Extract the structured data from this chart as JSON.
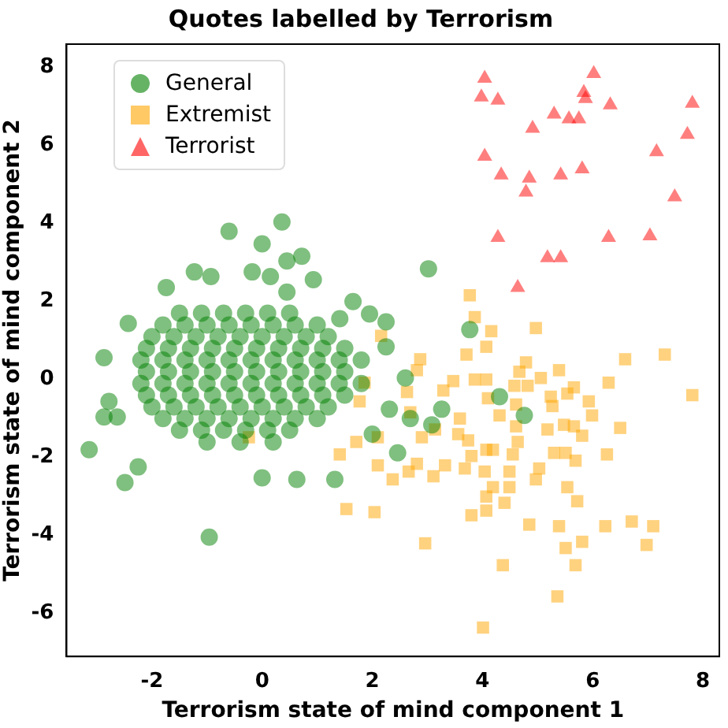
{
  "chart_data": {
    "type": "scatter",
    "title": "Quotes labelled by Terrorism",
    "xlabel": "Terrorism state of mind component 1",
    "ylabel": "Terrorism state of mind component 2",
    "xlim": [
      -3.55,
      8.3
    ],
    "ylim": [
      -7.1,
      8.6
    ],
    "xticks": [
      -2,
      0,
      2,
      4,
      6,
      8
    ],
    "yticks": [
      -6,
      -4,
      -2,
      0,
      2,
      4,
      6,
      8
    ],
    "grid": false,
    "legend": "top left",
    "series": [
      {
        "name": "General",
        "color": "#008000",
        "marker": "circle",
        "x": [
          0.36,
          -0.6,
          0,
          0.45,
          0.72,
          -1.23,
          -0.93,
          -0.18,
          0.15,
          0.93,
          -1.74,
          0.45,
          -2.43,
          -2.87,
          -3.14,
          -2.49,
          -2.25,
          -0.96,
          0.63,
          0,
          1.32,
          -2.78,
          -2.87,
          -2.63,
          1.41,
          1.65,
          2.25,
          1.95,
          2.25,
          2.6,
          2.46,
          2,
          2.31,
          3.02,
          3.77,
          4.31,
          4.76,
          3.26,
          3.08,
          2.69,
          -1.5,
          -1.1,
          -0.7,
          -0.3,
          0.1,
          0.5,
          -1.8,
          -1.4,
          -1,
          -0.6,
          -0.2,
          0.2,
          0.6,
          1,
          -2,
          -1.6,
          -1.2,
          -0.8,
          -0.4,
          0,
          0.4,
          0.8,
          1.2,
          -2.1,
          -1.7,
          -1.3,
          -0.9,
          -0.5,
          -0.1,
          0.3,
          0.7,
          1.1,
          1.5,
          -2.2,
          -1.8,
          -1.4,
          -1,
          -0.6,
          -0.2,
          0.2,
          0.6,
          1,
          1.4,
          1.8,
          -2.1,
          -1.7,
          -1.3,
          -0.9,
          -0.5,
          -0.1,
          0.3,
          0.7,
          1.1,
          1.5,
          -2.2,
          -1.8,
          -1.4,
          -1,
          -0.6,
          -0.2,
          0.2,
          0.6,
          1,
          1.4,
          1.8,
          -2.1,
          -1.7,
          -1.3,
          -0.9,
          -0.5,
          -0.1,
          0.3,
          0.7,
          1.1,
          1.5,
          -2,
          -1.6,
          -1.2,
          -0.8,
          -0.4,
          0,
          0.4,
          0.8,
          1.2,
          -1.8,
          -1.4,
          -1,
          -0.6,
          -0.2,
          0.2,
          0.6,
          1,
          -1.5,
          -1.1,
          -0.7,
          -0.3,
          0.1,
          0.5,
          -1,
          -0.4,
          0.2
        ],
        "values": [
          4.04,
          3.8,
          3.48,
          3.04,
          3.16,
          2.76,
          2.64,
          2.76,
          2.64,
          2.56,
          2.36,
          2.24,
          1.44,
          0.56,
          -1.8,
          -2.64,
          -2.24,
          -4.04,
          -2.56,
          -2.52,
          -2.56,
          -0.56,
          -0.96,
          -0.96,
          1.56,
          2,
          1.48,
          1.68,
          0.84,
          0.04,
          -1.88,
          -1.4,
          -0.76,
          2.84,
          1.28,
          -0.44,
          -0.92,
          -0.76,
          -1.16,
          -1,
          1.7,
          1.7,
          1.7,
          1.7,
          1.7,
          1.7,
          1.4,
          1.4,
          1.4,
          1.4,
          1.4,
          1.4,
          1.4,
          1.4,
          1.1,
          1.1,
          1.1,
          1.1,
          1.1,
          1.1,
          1.1,
          1.1,
          1.1,
          0.8,
          0.8,
          0.8,
          0.8,
          0.8,
          0.8,
          0.8,
          0.8,
          0.8,
          0.8,
          0.5,
          0.5,
          0.5,
          0.5,
          0.5,
          0.5,
          0.5,
          0.5,
          0.5,
          0.5,
          0.5,
          0.2,
          0.2,
          0.2,
          0.2,
          0.2,
          0.2,
          0.2,
          0.2,
          0.2,
          0.2,
          -0.1,
          -0.1,
          -0.1,
          -0.1,
          -0.1,
          -0.1,
          -0.1,
          -0.1,
          -0.1,
          -0.1,
          -0.1,
          -0.4,
          -0.4,
          -0.4,
          -0.4,
          -0.4,
          -0.4,
          -0.4,
          -0.4,
          -0.4,
          -0.4,
          -0.7,
          -0.7,
          -0.7,
          -0.7,
          -0.7,
          -0.7,
          -0.7,
          -0.7,
          -0.7,
          -1,
          -1,
          -1,
          -1,
          -1,
          -1,
          -1,
          -1,
          -1.3,
          -1.3,
          -1.3,
          -1.3,
          -1.3,
          -1.3,
          -1.6,
          -1.6,
          -1.6
        ]
      },
      {
        "name": "Extremist",
        "color": "#ffa500",
        "marker": "square",
        "x": [
          3.77,
          3.86,
          4.16,
          4.97,
          4.07,
          3.71,
          2.16,
          6.59,
          7.31,
          7.81,
          4.79,
          5.39,
          4.67,
          6.29,
          5.06,
          5.66,
          3.47,
          3.86,
          4.07,
          4.58,
          4.82,
          3.29,
          2.63,
          5.24,
          5.54,
          5.93,
          4.1,
          4.61,
          5.99,
          5.27,
          4.31,
          2.69,
          3.59,
          6.5,
          5.18,
          5.48,
          5.66,
          5.81,
          4.61,
          3.14,
          2.9,
          3.56,
          3.74,
          2.1,
          1.71,
          4.07,
          3.8,
          4.19,
          4.55,
          4.64,
          5.3,
          5.51,
          5.69,
          6.26,
          1.41,
          2.1,
          2.37,
          2.66,
          2.81,
          3.11,
          3.32,
          3.68,
          4.04,
          4.49,
          4.49,
          4.97,
          5.03,
          5.54,
          5.72,
          4.19,
          4.07,
          4.4,
          4.07,
          3.8,
          1.53,
          2.04,
          4.85,
          5.39,
          6.23,
          6.71,
          7.1,
          6.98,
          5.81,
          5.51,
          5.69,
          2.96,
          4.37,
          5.36,
          4.01,
          -0.24,
          2.87,
          2.81,
          1.86,
          1.77
        ],
        "values": [
          2.16,
          1.6,
          1.24,
          1.32,
          0.84,
          0.64,
          1.12,
          0.52,
          0.64,
          -0.4,
          0.44,
          0.24,
          0.2,
          -0.08,
          0.04,
          -0.2,
          -0.04,
          0,
          0,
          -0.16,
          -0.16,
          -0.28,
          -0.32,
          -0.44,
          -0.36,
          -0.56,
          -0.48,
          -0.64,
          -0.92,
          -0.68,
          -0.92,
          -0.84,
          -1,
          -1.24,
          -1.28,
          -1.16,
          -1.2,
          -1.44,
          -1.2,
          -1.28,
          -1.48,
          -1.4,
          -1.56,
          -1.48,
          -1.6,
          -1.8,
          -1.96,
          -1.8,
          -1.92,
          -1.6,
          -1.88,
          -1.88,
          -2.08,
          -1.92,
          -1.92,
          -2.2,
          -2.56,
          -2.36,
          -2.16,
          -2.48,
          -2.2,
          -2.28,
          -2.36,
          -2.36,
          -2.76,
          -2.56,
          -2.28,
          -2.76,
          -3.12,
          -2.76,
          -3,
          -3.16,
          -3.36,
          -3.48,
          -3.32,
          -3.4,
          -3.72,
          -3.76,
          -3.76,
          -3.64,
          -3.76,
          -4.24,
          -4.16,
          -4.32,
          -4.76,
          -4.2,
          -4.76,
          -5.56,
          -6.36,
          -1.48,
          0.52,
          0.24,
          -0.08,
          -0.56
        ]
      },
      {
        "name": "Terrorist",
        "color": "#ff0000",
        "marker": "triangle",
        "x": [
          4.04,
          3.98,
          4.28,
          6.02,
          5.84,
          5.87,
          6.32,
          7.81,
          5.3,
          5.57,
          5.75,
          4.91,
          7.72,
          7.16,
          4.04,
          4.34,
          4.85,
          5.42,
          5.81,
          4.79,
          7.49,
          4.28,
          6.29,
          7.04,
          5.18,
          5.42,
          4.64
        ],
        "values": [
          7.72,
          7.24,
          7.16,
          7.84,
          7.36,
          7.2,
          7.04,
          7.08,
          6.8,
          6.68,
          6.68,
          6.44,
          6.28,
          5.84,
          5.72,
          5.24,
          5.16,
          5.24,
          5.4,
          4.8,
          4.68,
          3.64,
          3.64,
          3.68,
          3.12,
          3.12,
          2.36
        ]
      }
    ]
  }
}
